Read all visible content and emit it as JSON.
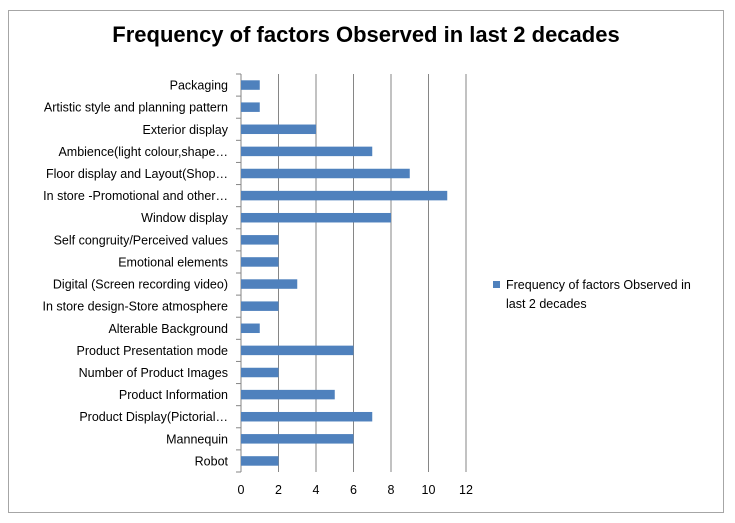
{
  "chart_data": {
    "type": "bar",
    "orientation": "horizontal",
    "title": "Frequency of factors Observed in last 2 decades",
    "categories": [
      "Packaging",
      "Artistic  style and planning pattern",
      "Exterior display",
      "Ambience(light colour,shape…",
      "Floor display and Layout(Shop…",
      "In store -Promotional and other…",
      "Window display",
      "Self congruity/Perceived values",
      "Emotional elements",
      "Digital (Screen recording video)",
      "In store design-Store atmosphere",
      "Alterable Background",
      "Product Presentation mode",
      "Number of Product Images",
      "Product Information",
      "Product Display(Pictorial…",
      "Mannequin",
      "Robot"
    ],
    "series": [
      {
        "name": "Frequency of factors Observed in last 2 decades",
        "values": [
          1,
          1,
          4,
          7,
          9,
          11,
          8,
          2,
          2,
          3,
          2,
          1,
          6,
          2,
          5,
          7,
          6,
          2
        ],
        "color": "#4f81bd"
      }
    ],
    "xlim": [
      0,
      12
    ],
    "xticks": [
      "0",
      "2",
      "4",
      "6",
      "8",
      "10",
      "12"
    ],
    "grid": "vertical",
    "legend_position": "right",
    "legend_lines": [
      "Frequency of factors Observed in",
      "last 2 decades"
    ]
  }
}
